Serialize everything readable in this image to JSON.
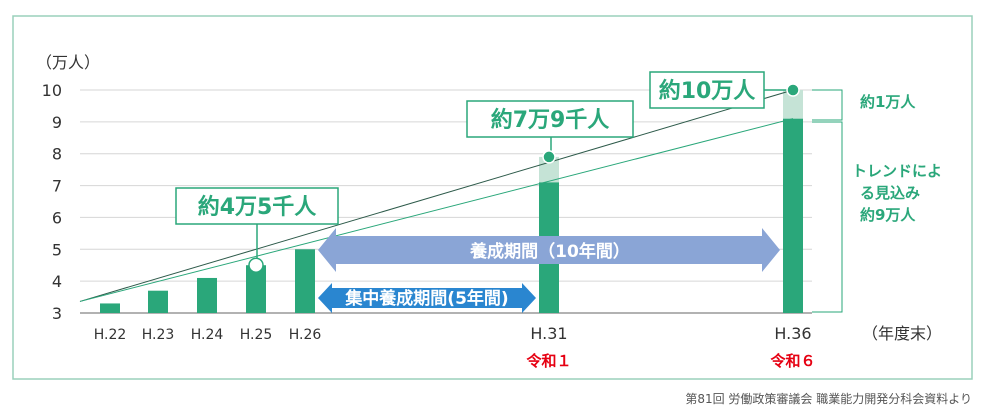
{
  "chart_data": {
    "type": "bar",
    "ylabel": "（万人）",
    "xlabel": "（年度末）",
    "ylim": [
      3,
      10
    ],
    "y_ticks": [
      3,
      4,
      5,
      6,
      7,
      8,
      9,
      10
    ],
    "grid": true,
    "bars": [
      {
        "label": "H.22",
        "value": 3.3
      },
      {
        "label": "H.23",
        "value": 3.7
      },
      {
        "label": "H.24",
        "value": 4.1
      },
      {
        "label": "H.25",
        "value": 4.5
      },
      {
        "label": "H.26",
        "value": 5.0
      },
      {
        "label": "H.31",
        "era": "令和１",
        "value": 7.1,
        "target": 7.9
      },
      {
        "label": "H.36",
        "era": "令和６",
        "value": 9.1,
        "target": 10.0
      }
    ],
    "callouts": [
      {
        "text": "約4万5千人",
        "value": 4.5
      },
      {
        "text": "約7万9千人",
        "value": 7.9
      },
      {
        "text": "約10万人",
        "value": 10.0
      }
    ],
    "arrows": [
      {
        "text": "養成期間（10年間）"
      },
      {
        "text": "集中養成期間(5年間)"
      }
    ],
    "annotations": {
      "gap": "約1万人",
      "trend": [
        "トレンドによ",
        "る見込み",
        "約9万人"
      ]
    },
    "source": "第81回 労働政策審議会 職業能力開発分科会資料より",
    "colors": {
      "bar": "#2aa77a",
      "bar_light": "#c5e3d6",
      "frame": "#9ad0bb",
      "arrow_long": "#8aa5d6",
      "arrow_short": "#2a86d0",
      "era": "#e60012"
    }
  }
}
